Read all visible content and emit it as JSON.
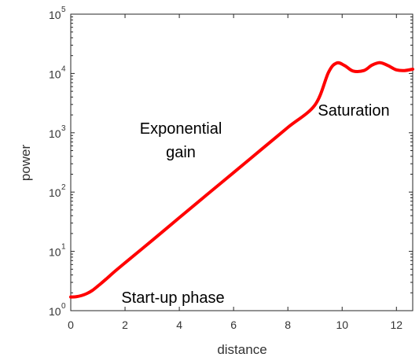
{
  "chart_data": {
    "type": "line",
    "xlabel": "distance",
    "ylabel": "power",
    "xlim": [
      0,
      12.6
    ],
    "ylim": [
      1,
      100000
    ],
    "yscale": "log",
    "grid": false,
    "x_ticks": [
      "0",
      "2",
      "4",
      "6",
      "8",
      "10",
      "12"
    ],
    "y_ticks": [
      {
        "base": "10",
        "exp": "0"
      },
      {
        "base": "10",
        "exp": "1"
      },
      {
        "base": "10",
        "exp": "2"
      },
      {
        "base": "10",
        "exp": "3"
      },
      {
        "base": "10",
        "exp": "4"
      },
      {
        "base": "10",
        "exp": "5"
      }
    ],
    "series": [
      {
        "color": "#ff0000",
        "x": [
          0,
          0.2,
          0.4,
          0.6,
          0.8,
          1.0,
          1.3,
          1.6,
          2,
          3,
          4,
          5,
          6,
          7,
          8,
          9,
          9.5,
          9.8,
          10.1,
          10.4,
          10.8,
          11.1,
          11.4,
          11.7,
          12.0,
          12.3,
          12.6
        ],
        "values": [
          1.7,
          1.72,
          1.8,
          1.95,
          2.2,
          2.6,
          3.4,
          4.5,
          6.4,
          15.3,
          37,
          89,
          213,
          512,
          1230,
          2950,
          10500,
          15000,
          13500,
          11000,
          11200,
          13800,
          15200,
          13500,
          11500,
          11200,
          11800
        ]
      }
    ],
    "annotations": [
      {
        "lines": [
          "Exponential",
          "gain"
        ]
      },
      {
        "lines": [
          "Saturation"
        ]
      },
      {
        "lines": [
          "Start-up phase"
        ]
      }
    ]
  }
}
